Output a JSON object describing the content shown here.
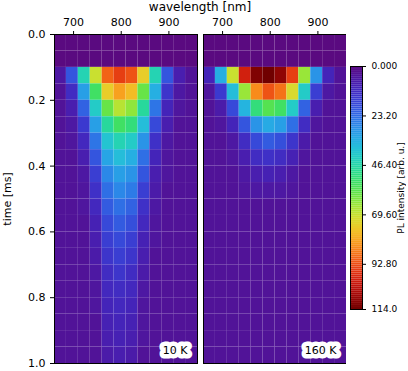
{
  "chart_data": {
    "type": "heatmap",
    "xlabel": "wavelength [nm]",
    "ylabel": "time [ms]",
    "xlim": [
      660,
      960
    ],
    "xticks": [
      700,
      800,
      900
    ],
    "ylim": [
      0,
      1
    ],
    "yticks": [
      {
        "value": 0,
        "label": "0.0"
      },
      0.2,
      0.4,
      0.6,
      0.8,
      {
        "value": 1,
        "label": "1.0"
      }
    ],
    "x_bins": [
      660,
      685,
      710,
      735,
      760,
      785,
      810,
      835,
      860,
      885,
      910,
      935,
      960
    ],
    "y_bins": [
      0,
      0.05,
      0.1,
      0.15,
      0.2,
      0.25,
      0.3,
      0.35,
      0.4,
      0.45,
      0.5,
      0.55,
      0.6,
      0.65,
      0.7,
      0.75,
      0.8,
      0.85,
      0.9,
      0.95,
      1.0
    ],
    "colorbar": {
      "label": "PL intensity [arb. u.]",
      "range": [
        0,
        114
      ],
      "ticks": [
        {
          "value": 0,
          "label": "0.000"
        },
        {
          "value": 23.2,
          "label": "23.20"
        },
        {
          "value": 46.4,
          "label": "46.40"
        },
        {
          "value": 69.6,
          "label": "69.60"
        },
        {
          "value": 92.8,
          "label": "92.80"
        },
        {
          "value": 114,
          "label": "114.0"
        }
      ]
    },
    "panels": [
      {
        "name": "10 K",
        "cells": [
          [
            0,
            0,
            0,
            0,
            0,
            0,
            0,
            0,
            0,
            0,
            0,
            0
          ],
          [
            0,
            0,
            0,
            0,
            0,
            0,
            0,
            0,
            0,
            0,
            0,
            0
          ],
          [
            6,
            20,
            45,
            70,
            90,
            95,
            92,
            75,
            45,
            20,
            8,
            4
          ],
          [
            4,
            12,
            32,
            55,
            75,
            82,
            78,
            60,
            35,
            14,
            6,
            4
          ],
          [
            4,
            8,
            22,
            42,
            60,
            68,
            64,
            48,
            25,
            10,
            5,
            4
          ],
          [
            4,
            6,
            15,
            32,
            48,
            55,
            52,
            38,
            18,
            8,
            4,
            4
          ],
          [
            4,
            5,
            11,
            25,
            40,
            45,
            42,
            30,
            13,
            6,
            4,
            4
          ],
          [
            4,
            4,
            8,
            20,
            33,
            38,
            35,
            24,
            10,
            5,
            4,
            4
          ],
          [
            4,
            4,
            6,
            16,
            28,
            32,
            30,
            20,
            8,
            5,
            4,
            4
          ],
          [
            4,
            4,
            5,
            13,
            24,
            28,
            26,
            16,
            7,
            4,
            4,
            4
          ],
          [
            4,
            4,
            5,
            11,
            21,
            24,
            22,
            13,
            6,
            4,
            4,
            4
          ],
          [
            4,
            4,
            4,
            9,
            18,
            21,
            19,
            11,
            5,
            4,
            4,
            4
          ],
          [
            4,
            4,
            4,
            8,
            16,
            18,
            16,
            9,
            5,
            4,
            4,
            4
          ],
          [
            4,
            4,
            4,
            7,
            14,
            16,
            14,
            8,
            4,
            4,
            4,
            4
          ],
          [
            4,
            4,
            4,
            6,
            12,
            14,
            12,
            7,
            4,
            4,
            4,
            4
          ],
          [
            4,
            4,
            4,
            5,
            11,
            12,
            11,
            6,
            4,
            4,
            4,
            4
          ],
          [
            4,
            4,
            4,
            5,
            10,
            11,
            10,
            5,
            4,
            4,
            4,
            4
          ],
          [
            4,
            4,
            4,
            4,
            9,
            10,
            9,
            5,
            4,
            4,
            4,
            4
          ],
          [
            4,
            4,
            4,
            4,
            8,
            9,
            8,
            5,
            4,
            4,
            4,
            4
          ],
          [
            4,
            4,
            4,
            4,
            7,
            8,
            7,
            4,
            4,
            4,
            4,
            4
          ]
        ]
      },
      {
        "name": "160 K",
        "cells": [
          [
            0,
            0,
            0,
            0,
            0,
            0,
            0,
            0,
            0,
            0,
            0,
            0
          ],
          [
            0,
            0,
            0,
            0,
            0,
            0,
            0,
            0,
            0,
            0,
            0,
            0
          ],
          [
            10,
            35,
            70,
            100,
            112,
            114,
            110,
            95,
            65,
            30,
            10,
            4
          ],
          [
            5,
            15,
            38,
            65,
            85,
            92,
            88,
            72,
            42,
            16,
            6,
            4
          ],
          [
            4,
            7,
            18,
            36,
            52,
            58,
            55,
            42,
            22,
            8,
            4,
            4
          ],
          [
            4,
            5,
            10,
            20,
            30,
            34,
            32,
            24,
            12,
            5,
            4,
            4
          ],
          [
            4,
            4,
            6,
            12,
            18,
            21,
            19,
            14,
            7,
            4,
            4,
            4
          ],
          [
            4,
            4,
            5,
            8,
            12,
            13,
            12,
            9,
            5,
            4,
            4,
            4
          ],
          [
            4,
            4,
            4,
            6,
            8,
            9,
            8,
            6,
            4,
            4,
            4,
            4
          ],
          [
            4,
            4,
            4,
            5,
            6,
            6,
            6,
            5,
            4,
            4,
            4,
            4
          ],
          [
            4,
            4,
            4,
            4,
            4,
            4,
            4,
            4,
            4,
            4,
            4,
            4
          ],
          [
            4,
            4,
            4,
            4,
            4,
            4,
            4,
            4,
            4,
            4,
            4,
            4
          ],
          [
            4,
            4,
            4,
            4,
            4,
            4,
            4,
            4,
            4,
            4,
            4,
            4
          ],
          [
            4,
            4,
            4,
            4,
            4,
            4,
            4,
            4,
            4,
            4,
            4,
            4
          ],
          [
            4,
            4,
            4,
            4,
            4,
            4,
            4,
            4,
            4,
            4,
            4,
            4
          ],
          [
            4,
            4,
            4,
            4,
            4,
            4,
            4,
            4,
            4,
            4,
            4,
            4
          ],
          [
            4,
            4,
            4,
            4,
            4,
            4,
            4,
            4,
            4,
            4,
            4,
            4
          ],
          [
            4,
            4,
            4,
            4,
            4,
            4,
            4,
            4,
            4,
            4,
            4,
            4
          ],
          [
            4,
            4,
            4,
            4,
            4,
            4,
            4,
            4,
            4,
            4,
            4,
            4
          ],
          [
            4,
            4,
            4,
            4,
            4,
            4,
            4,
            4,
            4,
            4,
            4,
            4
          ]
        ]
      }
    ]
  }
}
